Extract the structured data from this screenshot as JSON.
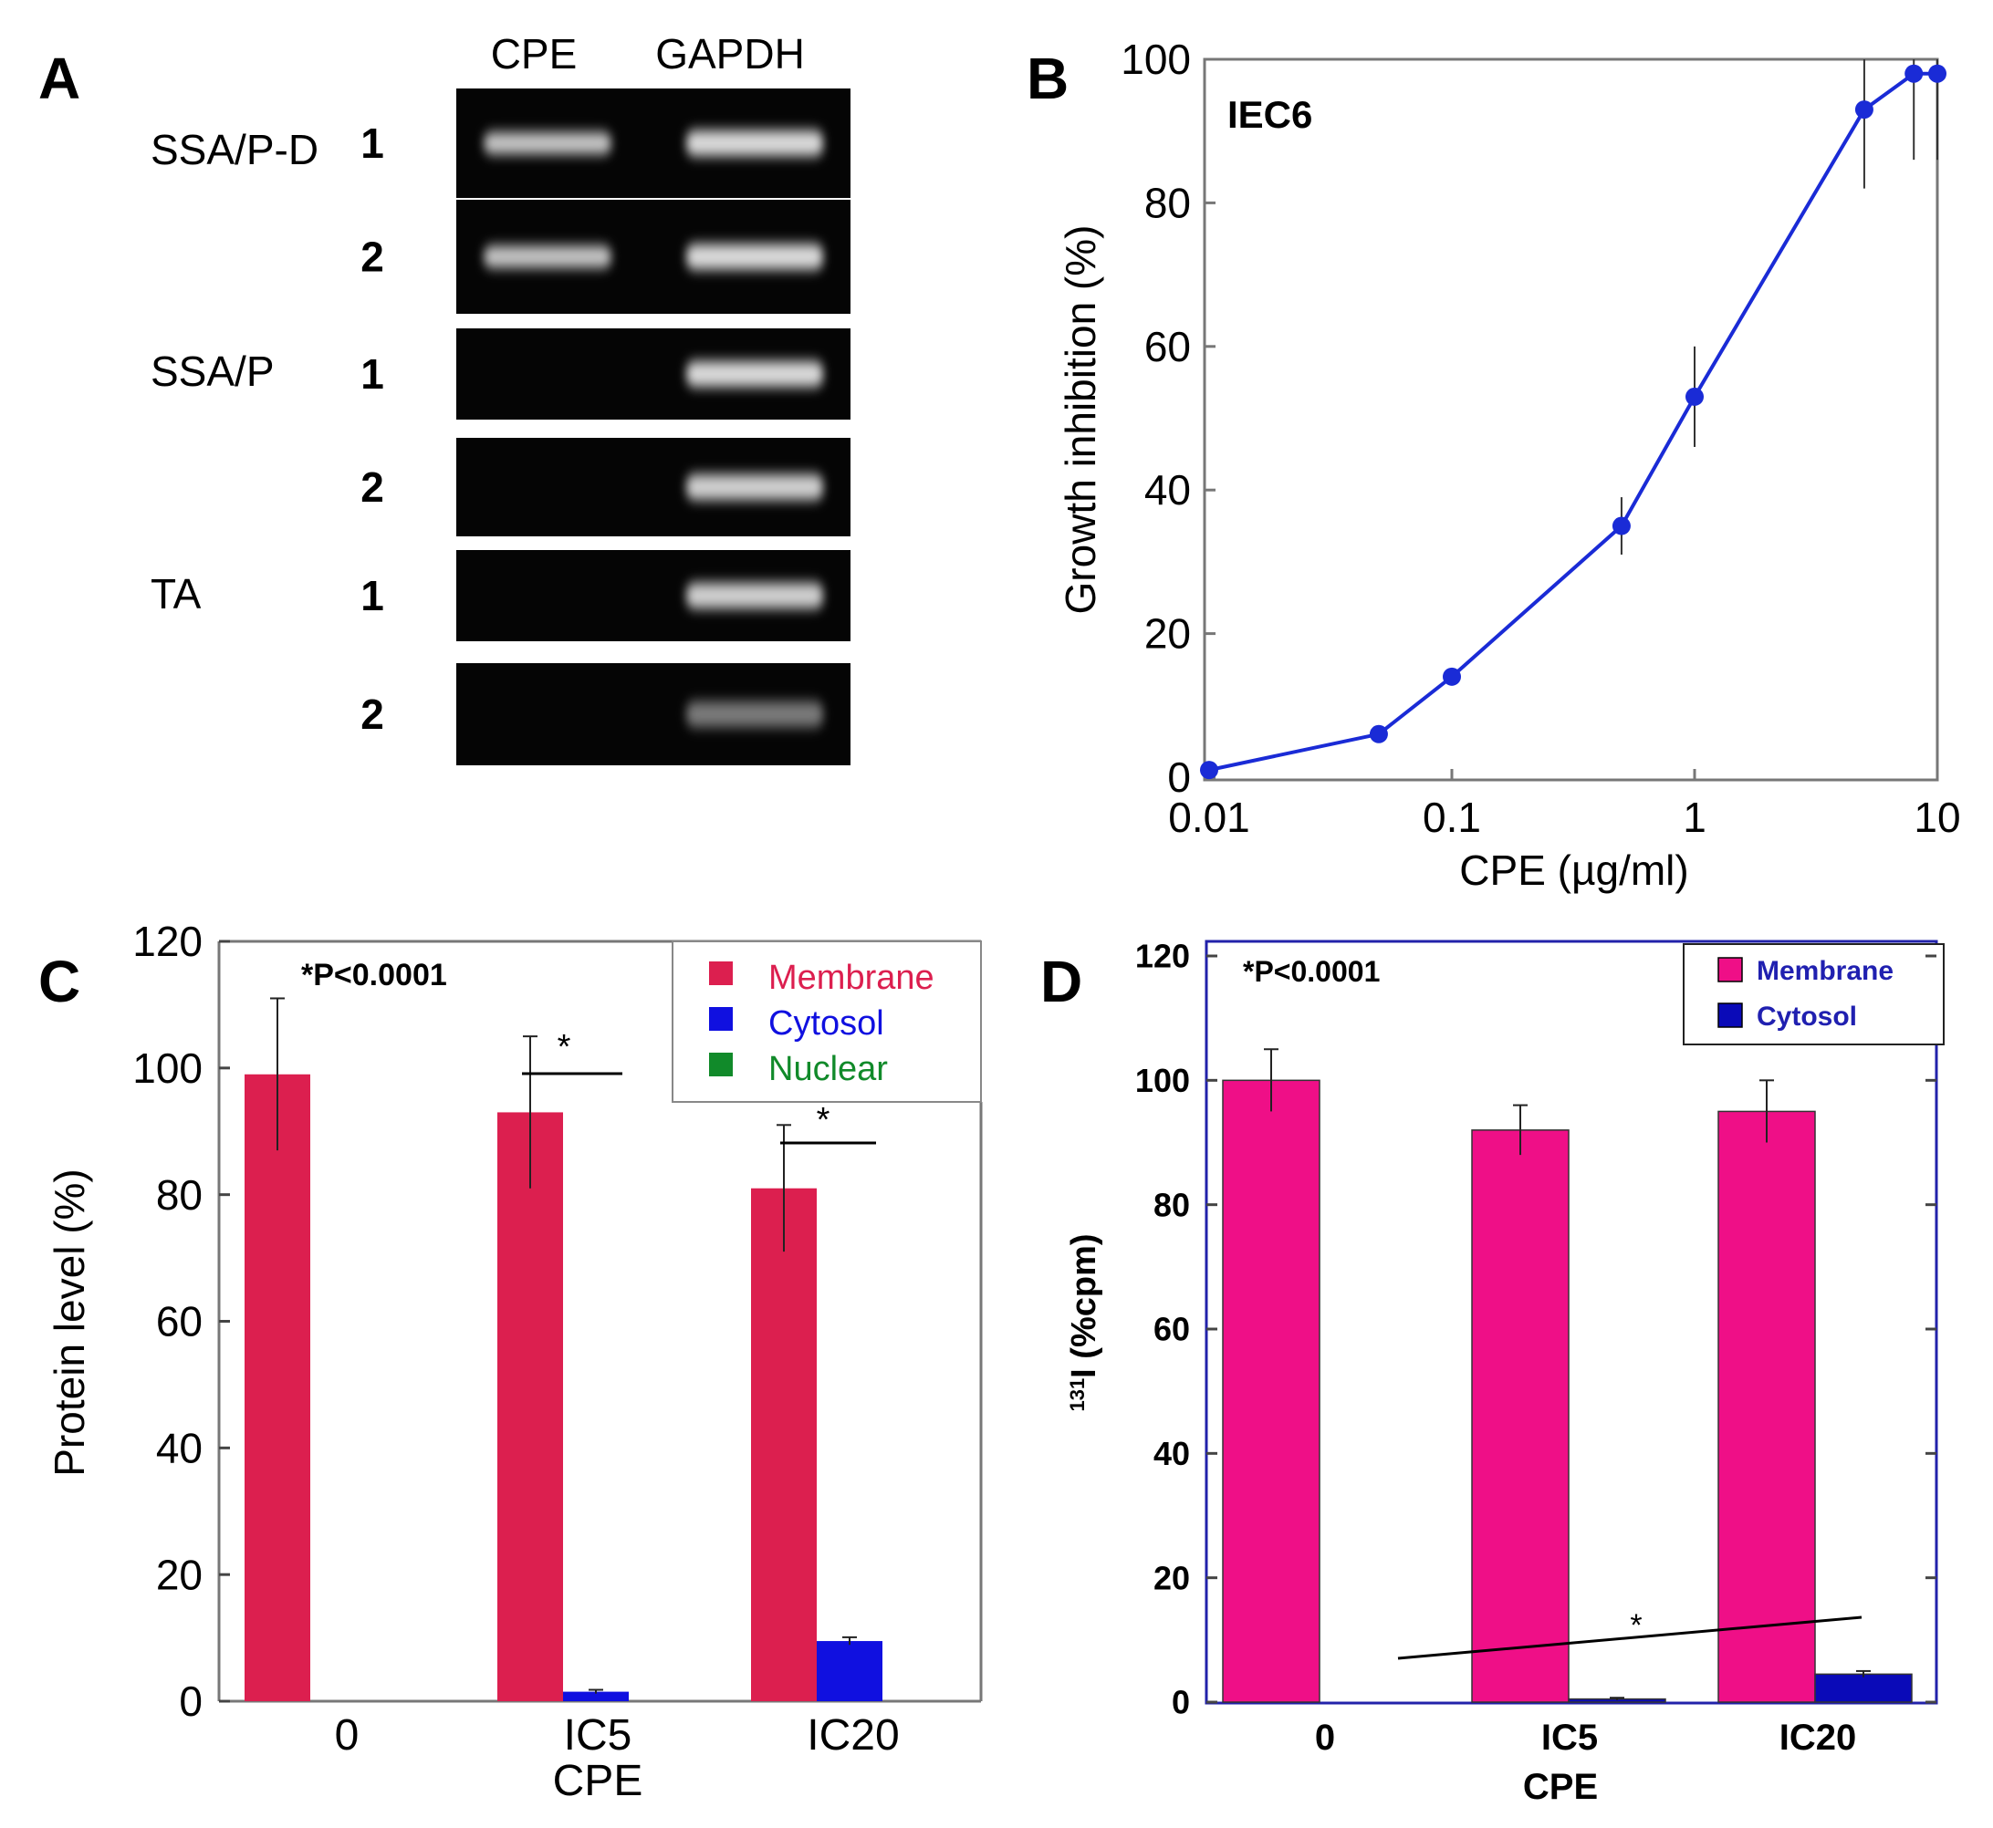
{
  "panel_a": {
    "letter": "A",
    "col_headers": [
      "CPE",
      "GAPDH"
    ],
    "groups": [
      {
        "label": "SSA/P-D",
        "lanes": [
          "1",
          "2"
        ],
        "cpe_band": [
          1,
          1
        ],
        "gapdh_band": [
          1,
          1
        ]
      },
      {
        "label": "SSA/P",
        "lanes": [
          "1",
          "2"
        ],
        "cpe_band": [
          0,
          0
        ],
        "gapdh_band": [
          1,
          0.95
        ]
      },
      {
        "label": "TA",
        "lanes": [
          "1",
          "2"
        ],
        "cpe_band": [
          0,
          0
        ],
        "gapdh_band": [
          0.95,
          0.55
        ]
      }
    ]
  },
  "panel_b": {
    "letter": "B",
    "inset_label": "IEC6"
  },
  "panel_c": {
    "letter": "C",
    "stat_note": "*P<0.0001",
    "sig_marks": [
      "*",
      "*"
    ]
  },
  "panel_d": {
    "letter": "D",
    "stat_note": "*P<0.0001",
    "sig_marks": [
      "*"
    ]
  },
  "colors": {
    "b_line": "#1a2bd6",
    "c_membrane": "#dc1f4f",
    "c_cytosol": "#1010e0",
    "c_nuclear": "#118a2a",
    "d_membrane": "#ef0f87",
    "d_cytosol": "#0a0ab8",
    "axis": "#777777",
    "d_frame": "#2222aa"
  },
  "chart_data": [
    {
      "id": "B",
      "type": "line",
      "xscale": "log",
      "x": [
        0.01,
        0.05,
        0.1,
        0.5,
        1,
        5,
        8,
        10
      ],
      "y": [
        1,
        6,
        14,
        35,
        53,
        93,
        98,
        98
      ],
      "err": [
        0,
        0,
        1,
        4,
        7,
        11,
        12,
        12
      ],
      "xlim": [
        0.01,
        10
      ],
      "ylim": [
        0,
        100
      ],
      "xticks": [
        "0.01",
        "0.1",
        "1",
        "10"
      ],
      "xtick_values": [
        0.01,
        0.1,
        1,
        10
      ],
      "yticks": [
        0,
        20,
        40,
        60,
        80,
        100
      ],
      "xlabel": "CPE (µg/ml)",
      "ylabel": "Growth inhibition (%)",
      "title": "IEC6"
    },
    {
      "id": "C",
      "type": "bar",
      "categories": [
        "0",
        "IC5",
        "IC20"
      ],
      "series": [
        {
          "name": "Membrane",
          "values": [
            99,
            93,
            81
          ],
          "err": [
            12,
            12,
            10
          ]
        },
        {
          "name": "Cytosol",
          "values": [
            0,
            1.5,
            9.5
          ],
          "err": [
            0,
            0.3,
            0.6
          ]
        },
        {
          "name": "Nuclear",
          "values": [
            0,
            0,
            0
          ],
          "err": [
            0,
            0,
            0
          ]
        }
      ],
      "ylim": [
        0,
        120
      ],
      "yticks": [
        0,
        20,
        40,
        60,
        80,
        100,
        120
      ],
      "xlabel": "CPE",
      "ylabel": "Protein level (%)",
      "legend": [
        "Membrane",
        "Cytosol",
        "Nuclear"
      ],
      "legend_position": "top-right"
    },
    {
      "id": "D",
      "type": "bar",
      "categories": [
        "0",
        "IC5",
        "IC20"
      ],
      "series": [
        {
          "name": "Membrane",
          "values": [
            100,
            92,
            95
          ],
          "err": [
            5,
            4,
            5
          ]
        },
        {
          "name": "Cytosol",
          "values": [
            0,
            0.5,
            4.5
          ],
          "err": [
            0,
            0.2,
            0.5
          ]
        }
      ],
      "ylim": [
        0,
        120
      ],
      "yticks": [
        0,
        20,
        40,
        60,
        80,
        100,
        120
      ],
      "xlabel": "CPE",
      "ylabel_sup": "131",
      "ylabel": "I (%cpm)",
      "legend": [
        "Membrane",
        "Cytosol"
      ],
      "legend_position": "top-right"
    }
  ]
}
